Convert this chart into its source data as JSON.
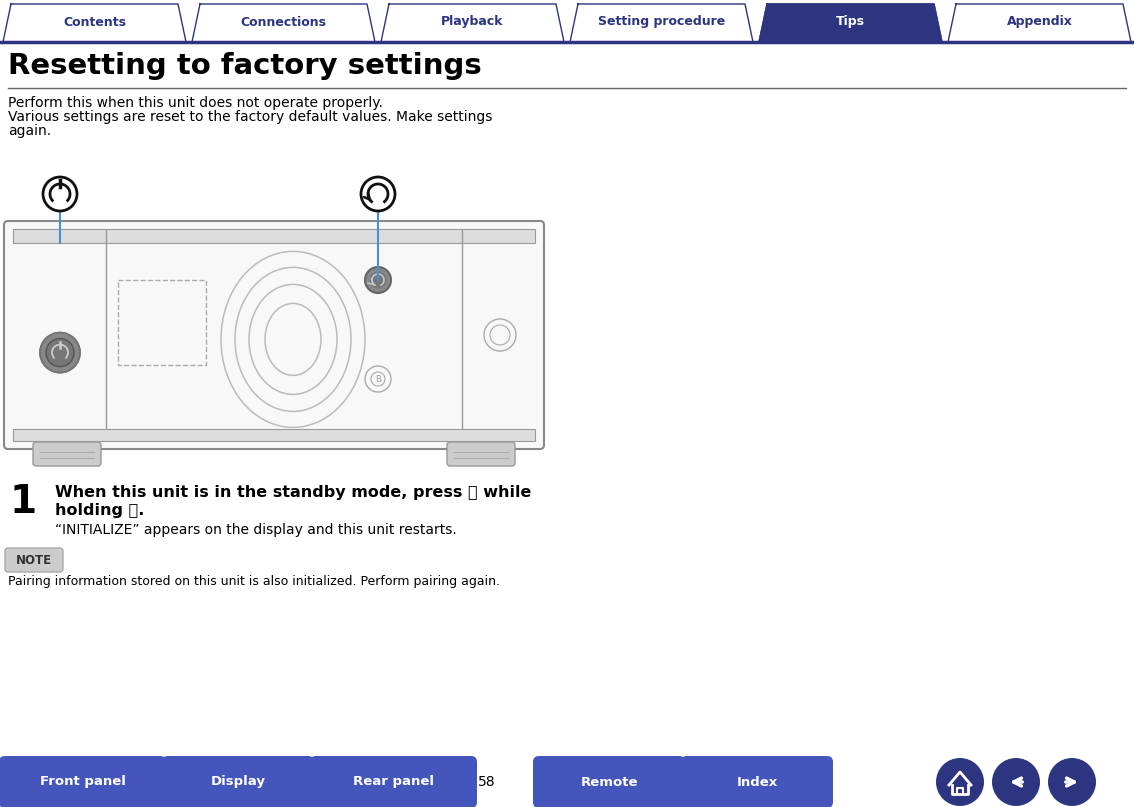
{
  "bg_color": "#ffffff",
  "nav_tabs": [
    "Contents",
    "Connections",
    "Playback",
    "Setting procedure",
    "Tips",
    "Appendix"
  ],
  "nav_active": 4,
  "nav_color_active": "#2d3480",
  "nav_color_inactive": "#ffffff",
  "nav_text_color_active": "#ffffff",
  "nav_text_color_inactive": "#2d3480",
  "nav_border_color": "#2d3480",
  "title": "Resetting to factory settings",
  "title_fontsize": 21,
  "title_color": "#000000",
  "body_text_line1": "Perform this when this unit does not operate properly.",
  "body_text_line2": "Various settings are reset to the factory default values. Make settings",
  "body_text_line3": "again.",
  "body_fontsize": 10,
  "step_normal_text": "“INITIALIZE” appears on the display and this unit restarts.",
  "note_label": "NOTE",
  "note_text": "Pairing information stored on this unit is also initialized. Perform pairing again.",
  "bottom_buttons": [
    "Front panel",
    "Display",
    "Rear panel",
    "Remote",
    "Index"
  ],
  "bottom_page": "58",
  "bottom_btn_color": "#4455bb",
  "bottom_icon_color": "#2d3480",
  "line_color": "#4a90d9",
  "dark_color": "#2d3480"
}
